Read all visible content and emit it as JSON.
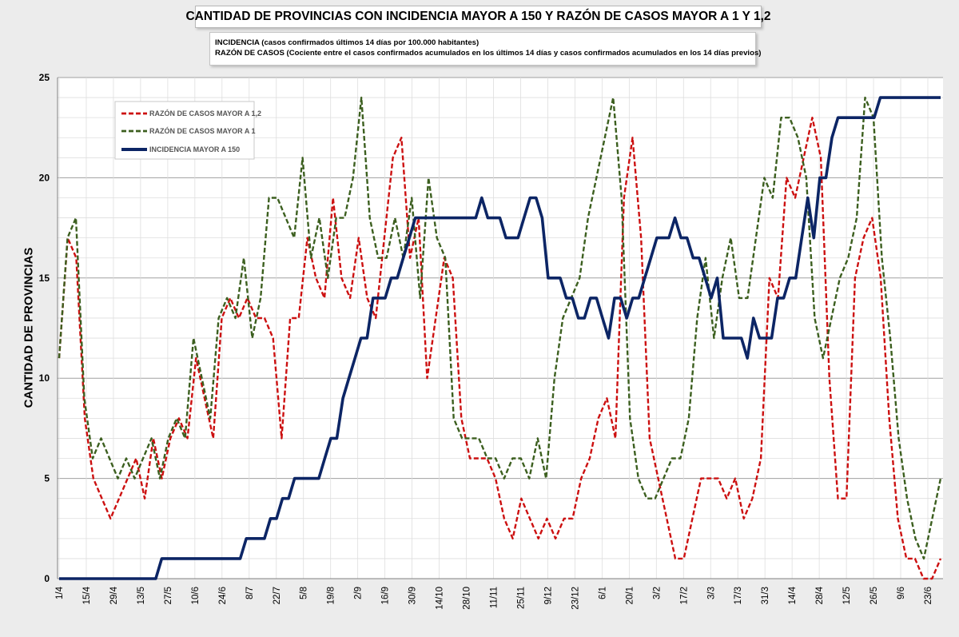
{
  "chart_data": {
    "type": "line",
    "title": "CANTIDAD DE PROVINCIAS CON INCIDENCIA MAYOR A 150 Y RAZÓN DE CASOS MAYOR A 1 Y 1,2",
    "notes": [
      "INCIDENCIA (casos confirmados últimos 14 días por 100.000  habitantes)",
      "RAZÓN DE CASOS (Cociente entre el casos confirmados acumulados en los últimos 14 días y casos  confirmados acumulados en los 14 días previos)"
    ],
    "ylabel": "CANTIDAD DE PROVINCIAS",
    "xlabel": "",
    "ylim": [
      0,
      25
    ],
    "yticks": [
      0,
      5,
      10,
      15,
      20,
      25
    ],
    "x_tick_labels": [
      "1/4",
      "15/4",
      "29/4",
      "13/5",
      "27/5",
      "10/6",
      "24/6",
      "8/7",
      "22/7",
      "5/8",
      "19/8",
      "2/9",
      "16/9",
      "30/9",
      "14/10",
      "28/10",
      "11/11",
      "25/11",
      "9/12",
      "23/12",
      "6/1",
      "20/1",
      "3/2",
      "17/2",
      "3/3",
      "17/3",
      "31/3",
      "14/4",
      "28/4",
      "12/5",
      "26/5",
      "9/6",
      "23/6"
    ],
    "grid": true,
    "legend_position": "top-left",
    "series": [
      {
        "name": "RAZÓN DE CASOS MAYOR A 1,2",
        "color": "#cc1010",
        "style": "dashed",
        "values": [
          11,
          17,
          16,
          8,
          5,
          4,
          3,
          4,
          5,
          6,
          4,
          7,
          5,
          7,
          8,
          7,
          11,
          9,
          7,
          13,
          14,
          13,
          14,
          13,
          13,
          12,
          7,
          13,
          13,
          17,
          15,
          14,
          19,
          15,
          14,
          17,
          14,
          13,
          17,
          21,
          22,
          16,
          18,
          10,
          13,
          16,
          15,
          8,
          6,
          6,
          6,
          5,
          3,
          2,
          4,
          3,
          2,
          3,
          2,
          3,
          3,
          5,
          6,
          8,
          9,
          7,
          19,
          22,
          17,
          7,
          5,
          3,
          1,
          1,
          3,
          5,
          5,
          5,
          4,
          5,
          3,
          4,
          6,
          15,
          14,
          20,
          19,
          21,
          23,
          21,
          10,
          4,
          4,
          15,
          17,
          18,
          15,
          8,
          3,
          1,
          1,
          0,
          0,
          1
        ]
      },
      {
        "name": "RAZÓN DE CASOS MAYOR A 1",
        "color": "#3c5f1f",
        "style": "dashed",
        "values": [
          11,
          17,
          18,
          9,
          6,
          7,
          6,
          5,
          6,
          5,
          6,
          7,
          5,
          7,
          8,
          7,
          12,
          10,
          8,
          13,
          14,
          13,
          16,
          12,
          14,
          19,
          19,
          18,
          17,
          21,
          16,
          18,
          15,
          18,
          18,
          20,
          24,
          18,
          16,
          16,
          18,
          16,
          19,
          14,
          20,
          17,
          16,
          8,
          7,
          7,
          7,
          6,
          6,
          5,
          6,
          6,
          5,
          7,
          5,
          10,
          13,
          14,
          15,
          18,
          20,
          22,
          24,
          19,
          8,
          5,
          4,
          4,
          5,
          6,
          6,
          8,
          13,
          16,
          12,
          15,
          17,
          14,
          14,
          17,
          20,
          19,
          23,
          23,
          22,
          20,
          13,
          11,
          13,
          15,
          16,
          18,
          24,
          23,
          16,
          12,
          7,
          4,
          2,
          1,
          3,
          5
        ]
      },
      {
        "name": "INCIDENCIA MAYOR A 150",
        "color": "#0c2565",
        "style": "solid",
        "values": [
          0,
          0,
          0,
          0,
          0,
          0,
          0,
          0,
          0,
          0,
          0,
          0,
          0,
          0,
          0,
          0,
          0,
          1,
          1,
          1,
          1,
          1,
          1,
          1,
          1,
          1,
          1,
          1,
          1,
          1,
          1,
          2,
          2,
          2,
          2,
          3,
          3,
          4,
          4,
          5,
          5,
          5,
          5,
          5,
          6,
          7,
          7,
          9,
          10,
          11,
          12,
          12,
          14,
          14,
          14,
          15,
          15,
          16,
          17,
          18,
          18,
          18,
          18,
          18,
          18,
          18,
          18,
          18,
          18,
          18,
          19,
          18,
          18,
          18,
          17,
          17,
          17,
          18,
          19,
          19,
          18,
          15,
          15,
          15,
          14,
          14,
          13,
          13,
          14,
          14,
          13,
          12,
          14,
          14,
          13,
          14,
          14,
          15,
          16,
          17,
          17,
          17,
          18,
          17,
          17,
          16,
          16,
          15,
          14,
          15,
          12,
          12,
          12,
          12,
          11,
          13,
          12,
          12,
          12,
          14,
          14,
          15,
          15,
          17,
          19,
          17,
          20,
          20,
          22,
          23,
          23,
          23,
          23,
          23,
          23,
          23,
          24,
          24,
          24,
          24,
          24,
          24,
          24,
          24,
          24,
          24,
          24
        ]
      }
    ]
  }
}
